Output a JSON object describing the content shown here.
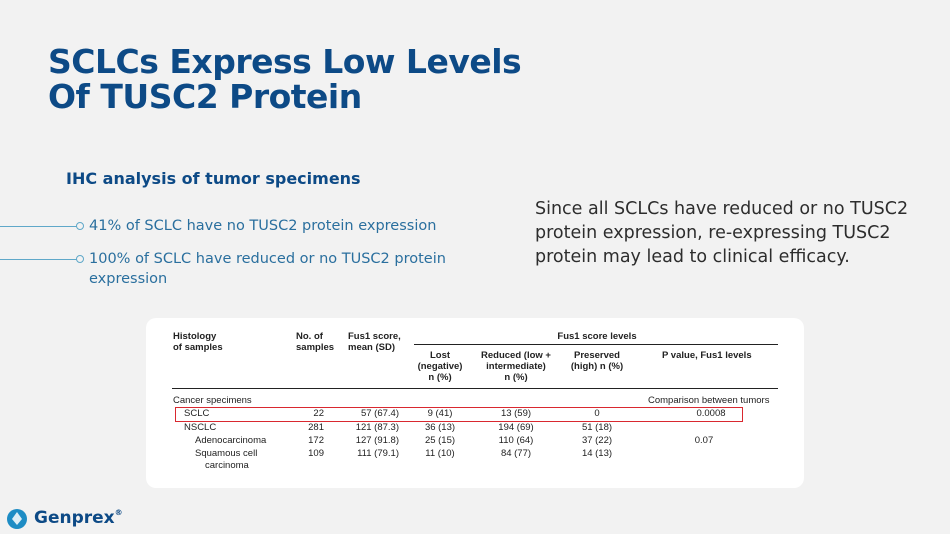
{
  "title": {
    "line1": "SCLCs Express Low Levels",
    "line2": "Of TUSC2 Protein"
  },
  "subheading": "IHC analysis of tumor specimens",
  "bullets": [
    "41% of SCLC have no TUSC2 protein expression",
    "100% of SCLC have reduced or no TUSC2 protein",
    "expression"
  ],
  "callout": "Since all SCLCs have reduced or no TUSC2 protein expression, re-expressing TUSC2 protein may lead to clinical efficacy.",
  "table": {
    "col_histology": [
      "Histology",
      "of samples"
    ],
    "col_samples": [
      "No. of",
      "samples"
    ],
    "col_fus1": [
      "Fus1 score,",
      "mean (SD)"
    ],
    "group_header": "Fus1 score levels",
    "col_lost": [
      "Lost",
      "(negative)",
      "n (%)"
    ],
    "col_reduced": [
      "Reduced (low +",
      "intermediate)",
      "n (%)"
    ],
    "col_preserved": [
      "Preserved",
      "(high) n (%)"
    ],
    "col_pvalue": "P value, Fus1 levels",
    "section_label": "Cancer specimens",
    "section_note": "Comparison between tumors",
    "rows": [
      {
        "name": "SCLC",
        "samples": "22",
        "fus1": "57 (67.4)",
        "lost": "9 (41)",
        "reduced": "13 (59)",
        "preserved": "0",
        "p": "0.0008"
      },
      {
        "name": "NSCLC",
        "samples": "281",
        "fus1": "121 (87.3)",
        "lost": "36 (13)",
        "reduced": "194 (69)",
        "preserved": "51 (18)",
        "p": ""
      },
      {
        "name": "Adenocarcinoma",
        "samples": "172",
        "fus1": "127 (91.8)",
        "lost": "25 (15)",
        "reduced": "110 (64)",
        "preserved": "37 (22)",
        "p": "0.07"
      },
      {
        "name": "Squamous cell",
        "name2": "carcinoma",
        "samples": "109",
        "fus1": "111 (79.1)",
        "lost": "11 (10)",
        "reduced": "84 (77)",
        "preserved": "14 (13)",
        "p": ""
      }
    ]
  },
  "logo": {
    "name": "Genprex",
    "mark": "®"
  },
  "colors": {
    "title": "#0d4a86",
    "bullet": "#2a6f9e",
    "highlight": "#d9282f"
  }
}
